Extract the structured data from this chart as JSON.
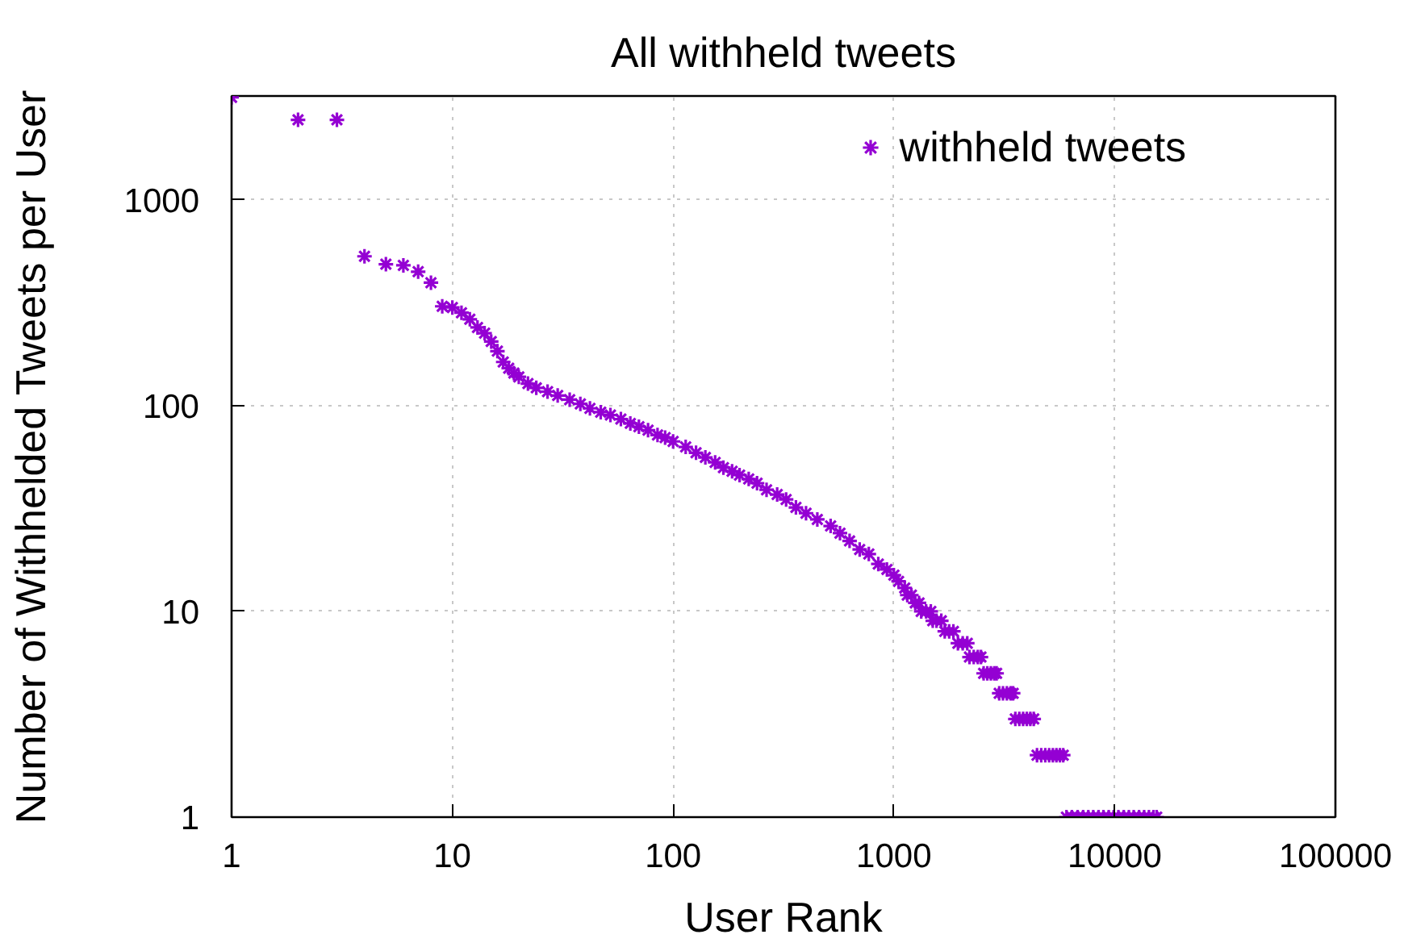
{
  "chart_data": {
    "type": "scatter",
    "title": "All withheld tweets",
    "xlabel": "User Rank",
    "ylabel": "Number of Withhelded Tweets per User",
    "log": "xy",
    "xlim": [
      1,
      100000
    ],
    "ylim": [
      1,
      3200
    ],
    "xticks": [
      1,
      10,
      100,
      1000,
      10000,
      100000
    ],
    "yticks": [
      1,
      10,
      100,
      1000
    ],
    "grid": true,
    "legend": "top right",
    "marker": "cross",
    "series": [
      {
        "name": "withheld tweets",
        "color": "#9400d3",
        "x": [
          1,
          2,
          3,
          4,
          5,
          6,
          7,
          8,
          9,
          10,
          11,
          12,
          13,
          14,
          15,
          16,
          17,
          18,
          19,
          20,
          22,
          24,
          27,
          30,
          34,
          38,
          42,
          47,
          52,
          58,
          64,
          70,
          77,
          85,
          92,
          100,
          114,
          127,
          140,
          155,
          169,
          185,
          200,
          220,
          240,
          265,
          296,
          325,
          360,
          400,
          450,
          517,
          570,
          630,
          700,
          770,
          850,
          930,
          1000,
          1050,
          1120,
          1150,
          1200,
          1250,
          1300,
          1330,
          1400,
          1470,
          1500,
          1560,
          1640,
          1700,
          1780,
          1860,
          1950,
          2050,
          2150,
          2200,
          2300,
          2400,
          2480,
          2550,
          2650,
          2750,
          2850,
          2920,
          3000,
          3120,
          3250,
          3380,
          3470,
          3550,
          3700,
          3850,
          4000,
          4150,
          4300,
          4450,
          4650,
          4850,
          5050,
          5250,
          5450,
          5650,
          5850,
          6050,
          6400,
          6800,
          7200,
          7600,
          8000,
          8450,
          8900,
          9400,
          9900,
          10400,
          11000,
          11600,
          12200,
          12900,
          13600,
          14300,
          15000,
          15500
        ],
        "values": [
          3150,
          2450,
          2450,
          532,
          487,
          481,
          448,
          396,
          304,
          300,
          283,
          263,
          240,
          225,
          205,
          184,
          163,
          152,
          144,
          138,
          128,
          122,
          117,
          112,
          107,
          102,
          97,
          93,
          90,
          86,
          82,
          79,
          76,
          72,
          70,
          67,
          63,
          59,
          56,
          53,
          50,
          48,
          46,
          44,
          42,
          39,
          37,
          35,
          32,
          30,
          28,
          26,
          24,
          22,
          20,
          19,
          17,
          16,
          15,
          14,
          13,
          12,
          12,
          11,
          11,
          10,
          10,
          10,
          9,
          9,
          9,
          8,
          8,
          8,
          7,
          7,
          7,
          6,
          6,
          6,
          6,
          5,
          5,
          5,
          5,
          5,
          4,
          4,
          4,
          4,
          4,
          3,
          3,
          3,
          3,
          3,
          3,
          2,
          2,
          2,
          2,
          2,
          2,
          2,
          2,
          1,
          1,
          1,
          1,
          1,
          1,
          1,
          1,
          1,
          1,
          1,
          1,
          1,
          1,
          1,
          1,
          1,
          1,
          1
        ]
      }
    ]
  }
}
